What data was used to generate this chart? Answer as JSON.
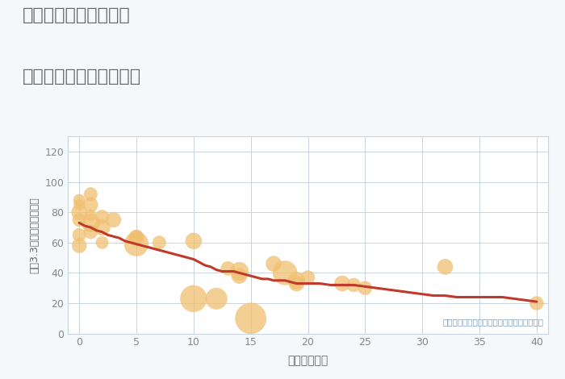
{
  "title_line1": "三重県鈴鹿市磯山町の",
  "title_line2": "築年数別中古戸建て価格",
  "xlabel": "築年数（年）",
  "ylabel": "坪（3.3㎡）単価（万円）",
  "annotation": "円の大きさは、取引のあった物件面積を示す",
  "bg_color": "#f5f7fa",
  "plot_bg_color": "#ffffff",
  "grid_color": "#c8d4e0",
  "title_color": "#666666",
  "axis_label_color": "#666666",
  "tick_color": "#888888",
  "annotation_color": "#7a9ab5",
  "bubble_color": "#f0c070",
  "bubble_alpha": 0.75,
  "line_color": "#c0392b",
  "line_width": 2.2,
  "xlim": [
    -1,
    41
  ],
  "ylim": [
    0,
    130
  ],
  "xticks": [
    0,
    5,
    10,
    15,
    20,
    25,
    30,
    35,
    40
  ],
  "yticks": [
    0,
    20,
    40,
    60,
    80,
    100,
    120
  ],
  "scatter_x": [
    0,
    0,
    0,
    0,
    0,
    0,
    1,
    1,
    1,
    1,
    1,
    2,
    2,
    2,
    3,
    5,
    5,
    5,
    7,
    10,
    10,
    12,
    13,
    14,
    14,
    15,
    17,
    18,
    19,
    19,
    20,
    23,
    24,
    25,
    32,
    40
  ],
  "scatter_y": [
    75,
    80,
    85,
    88,
    58,
    65,
    73,
    92,
    78,
    67,
    85,
    70,
    60,
    77,
    75,
    64,
    59,
    63,
    60,
    61,
    23,
    23,
    43,
    41,
    38,
    10,
    46,
    40,
    35,
    33,
    37,
    33,
    32,
    30,
    44,
    20
  ],
  "scatter_size": [
    150,
    200,
    100,
    120,
    180,
    150,
    280,
    150,
    110,
    160,
    180,
    220,
    130,
    160,
    190,
    150,
    480,
    200,
    150,
    220,
    580,
    380,
    160,
    280,
    200,
    780,
    200,
    480,
    240,
    200,
    160,
    200,
    160,
    160,
    200,
    160
  ],
  "line_x": [
    0,
    0.5,
    1,
    1.5,
    2,
    2.5,
    3,
    3.5,
    4,
    4.5,
    5,
    5.5,
    6,
    6.5,
    7,
    7.5,
    8,
    8.5,
    9,
    9.5,
    10,
    10.5,
    11,
    11.5,
    12,
    12.5,
    13,
    13.5,
    14,
    14.5,
    15,
    15.5,
    16,
    16.5,
    17,
    17.5,
    18,
    18.5,
    19,
    19.5,
    20,
    21,
    22,
    23,
    24,
    25,
    26,
    27,
    28,
    29,
    30,
    31,
    32,
    33,
    34,
    35,
    36,
    37,
    38,
    39,
    40
  ],
  "line_y": [
    73,
    71,
    70,
    68,
    67,
    65,
    64,
    63,
    61,
    60,
    59,
    58,
    57,
    56,
    55,
    54,
    53,
    52,
    51,
    50,
    49,
    47,
    45,
    44,
    42,
    41,
    41,
    41,
    40,
    39,
    38,
    37,
    36,
    36,
    35,
    35,
    35,
    34,
    33,
    33,
    33,
    33,
    32,
    32,
    32,
    31,
    30,
    29,
    28,
    27,
    26,
    25,
    25,
    24,
    24,
    24,
    24,
    24,
    23,
    22,
    21
  ]
}
